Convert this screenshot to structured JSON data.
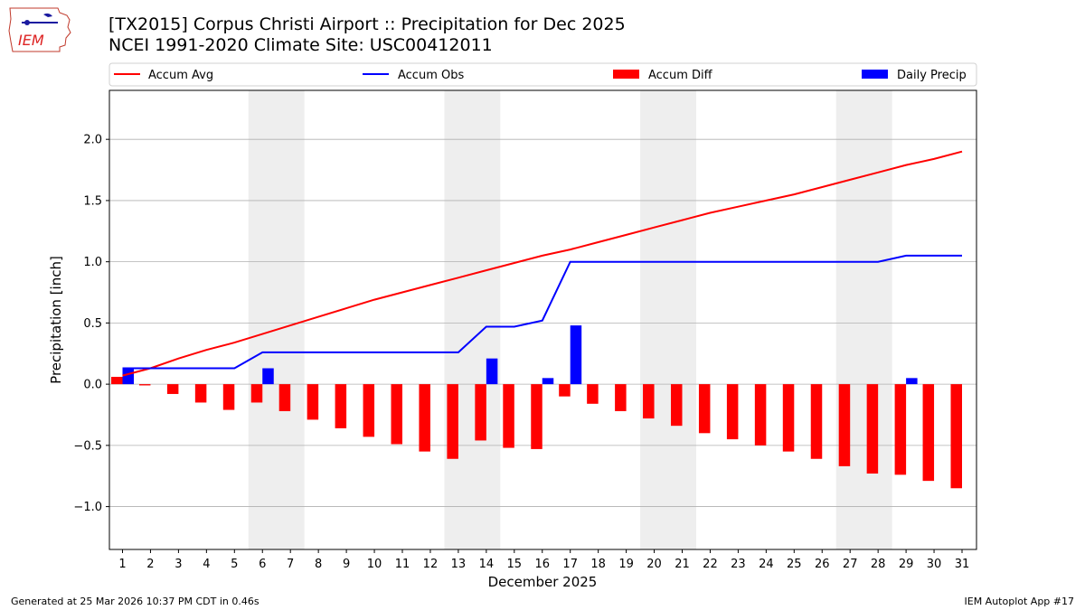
{
  "header": {
    "title_line1": "[TX2015] Corpus Christi Airport :: Precipitation for Dec 2025",
    "title_line2": "NCEI 1991-2020 Climate Site: USC00412011"
  },
  "logo": {
    "text": "IEM"
  },
  "footer": {
    "left": "Generated at 25 Mar 2026 10:37 PM CDT in 0.46s",
    "right": "IEM Autoplot App #17"
  },
  "chart_data": {
    "type": "bar",
    "xlabel": "December 2025",
    "ylabel": "Precipitation [inch]",
    "ylim": [
      -1.35,
      2.4
    ],
    "yticks": [
      -1.0,
      -0.5,
      0.0,
      0.5,
      1.0,
      1.5,
      2.0
    ],
    "ytick_labels": [
      "−1.0",
      "−0.5",
      "0.0",
      "0.5",
      "1.0",
      "1.5",
      "2.0"
    ],
    "categories": [
      "1",
      "2",
      "3",
      "4",
      "5",
      "6",
      "7",
      "8",
      "9",
      "10",
      "11",
      "12",
      "13",
      "14",
      "15",
      "16",
      "17",
      "18",
      "19",
      "20",
      "21",
      "22",
      "23",
      "24",
      "25",
      "26",
      "27",
      "28",
      "29",
      "30",
      "31"
    ],
    "weekend_shading": [
      [
        6,
        7
      ],
      [
        13,
        14
      ],
      [
        20,
        21
      ],
      [
        27,
        28
      ]
    ],
    "legend": {
      "placement": "top",
      "entries": [
        "Accum Avg",
        "Accum Obs",
        "Accum Diff",
        "Daily Precip"
      ]
    },
    "colors": {
      "avg": "#ff0000",
      "obs": "#0000ff",
      "diff": "#ff0000",
      "daily": "#0000ff",
      "shade": "#eeeeee",
      "grid": "#b0b0b0"
    },
    "series": [
      {
        "name": "Accum Avg",
        "kind": "line",
        "values": [
          0.07,
          0.13,
          0.21,
          0.28,
          0.34,
          0.41,
          0.48,
          0.55,
          0.62,
          0.69,
          0.75,
          0.81,
          0.87,
          0.93,
          0.99,
          1.05,
          1.1,
          1.16,
          1.22,
          1.28,
          1.34,
          1.4,
          1.45,
          1.5,
          1.55,
          1.61,
          1.67,
          1.73,
          1.79,
          1.84,
          1.9
        ]
      },
      {
        "name": "Accum Obs",
        "kind": "line",
        "values": [
          0.13,
          0.13,
          0.13,
          0.13,
          0.13,
          0.26,
          0.26,
          0.26,
          0.26,
          0.26,
          0.26,
          0.26,
          0.26,
          0.47,
          0.47,
          0.52,
          1.0,
          1.0,
          1.0,
          1.0,
          1.0,
          1.0,
          1.0,
          1.0,
          1.0,
          1.0,
          1.0,
          1.0,
          1.05,
          1.05,
          1.05
        ]
      },
      {
        "name": "Accum Diff",
        "kind": "bar",
        "values": [
          0.06,
          -0.01,
          -0.08,
          -0.15,
          -0.21,
          -0.15,
          -0.22,
          -0.29,
          -0.36,
          -0.43,
          -0.49,
          -0.55,
          -0.61,
          -0.46,
          -0.52,
          -0.53,
          -0.1,
          -0.16,
          -0.22,
          -0.28,
          -0.34,
          -0.4,
          -0.45,
          -0.5,
          -0.55,
          -0.61,
          -0.67,
          -0.73,
          -0.74,
          -0.79,
          -0.85
        ]
      },
      {
        "name": "Daily Precip",
        "kind": "bar",
        "values": [
          0.13,
          0,
          0,
          0,
          0,
          0.13,
          0,
          0,
          0,
          0,
          0,
          0,
          0,
          0.21,
          0,
          0.05,
          0.48,
          0,
          0,
          0,
          0,
          0,
          0,
          0,
          0,
          0,
          0,
          0,
          0.05,
          0,
          0
        ]
      }
    ]
  }
}
